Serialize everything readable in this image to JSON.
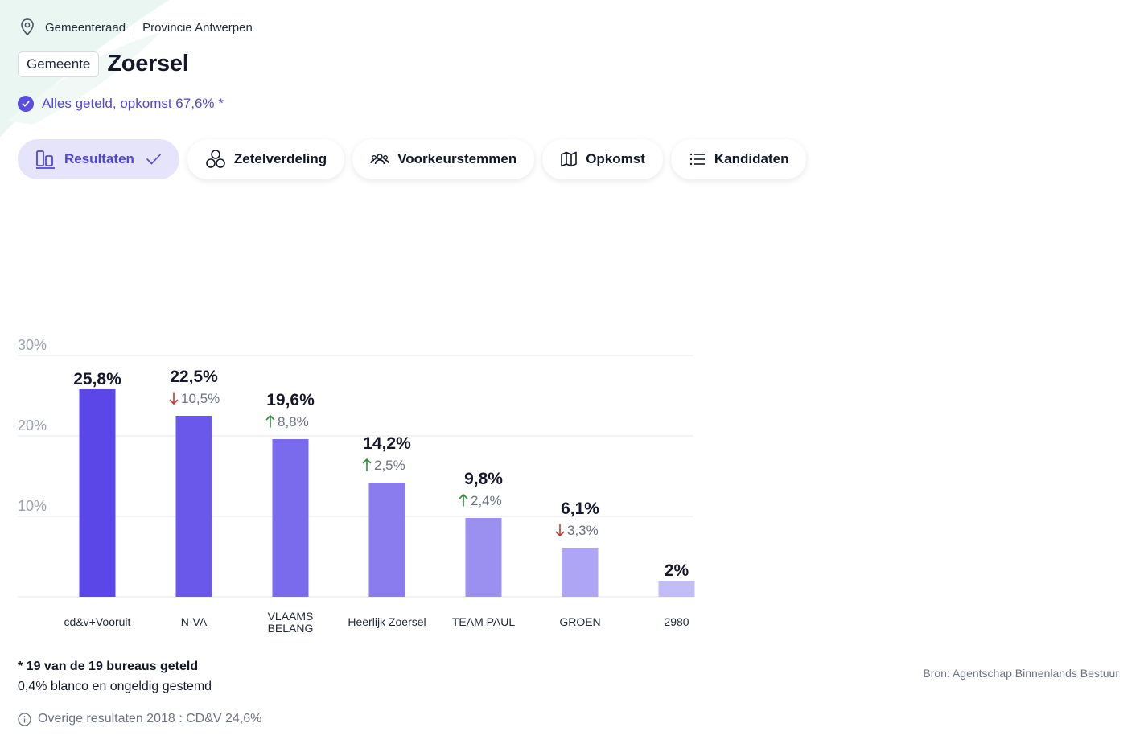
{
  "breadcrumb": {
    "level": "Gemeenteraad",
    "province": "Provincie Antwerpen"
  },
  "header": {
    "badge": "Gemeente",
    "title": "Zoersel"
  },
  "status": {
    "text": "Alles geteld, opkomst 67,6% *"
  },
  "tabs": [
    {
      "label": "Resultaten",
      "active": true,
      "icon": "bar-chart-icon"
    },
    {
      "label": "Zetelverdeling",
      "active": false,
      "icon": "seats-icon"
    },
    {
      "label": "Voorkeurstemmen",
      "active": false,
      "icon": "people-icon"
    },
    {
      "label": "Opkomst",
      "active": false,
      "icon": "map-icon"
    },
    {
      "label": "Kandidaten",
      "active": false,
      "icon": "list-icon"
    }
  ],
  "chart_data": {
    "type": "bar",
    "categories": [
      "cd&v+Vooruit",
      "N-VA",
      "VLAAMS BELANG",
      "Heerlijk Zoersel",
      "TEAM PAUL",
      "GROEN",
      "2980"
    ],
    "values": [
      25.8,
      22.5,
      19.6,
      14.2,
      9.8,
      6.1,
      2.0
    ],
    "value_labels": [
      "25,8%",
      "22,5%",
      "19,6%",
      "14,2%",
      "9,8%",
      "6,1%",
      "2%"
    ],
    "changes": [
      null,
      {
        "direction": "down",
        "label": "10,5%"
      },
      {
        "direction": "up",
        "label": "8,8%"
      },
      {
        "direction": "up",
        "label": "2,5%"
      },
      {
        "direction": "up",
        "label": "2,4%"
      },
      {
        "direction": "down",
        "label": "3,3%"
      },
      null
    ],
    "yticks": [
      "30%",
      "20%",
      "10%"
    ],
    "ytick_values": [
      30,
      20,
      10
    ],
    "ylim": [
      0,
      30
    ],
    "grid": true,
    "colors": [
      "#5b46e8",
      "#6a58ea",
      "#7a6aec",
      "#8a7cee",
      "#9b90f0",
      "#aea6f4",
      "#c2bcf7"
    ],
    "up_color": "#2f8a3b",
    "down_color": "#c23b2e"
  },
  "footnote": {
    "counted": "* 19 van de 19 bureaus geteld",
    "blank": "0,4% blanco en ongeldig gestemd"
  },
  "source": "Bron: Agentschap Binnenlands Bestuur",
  "other_results": "Overige resultaten 2018 : CD&V 24,6%"
}
